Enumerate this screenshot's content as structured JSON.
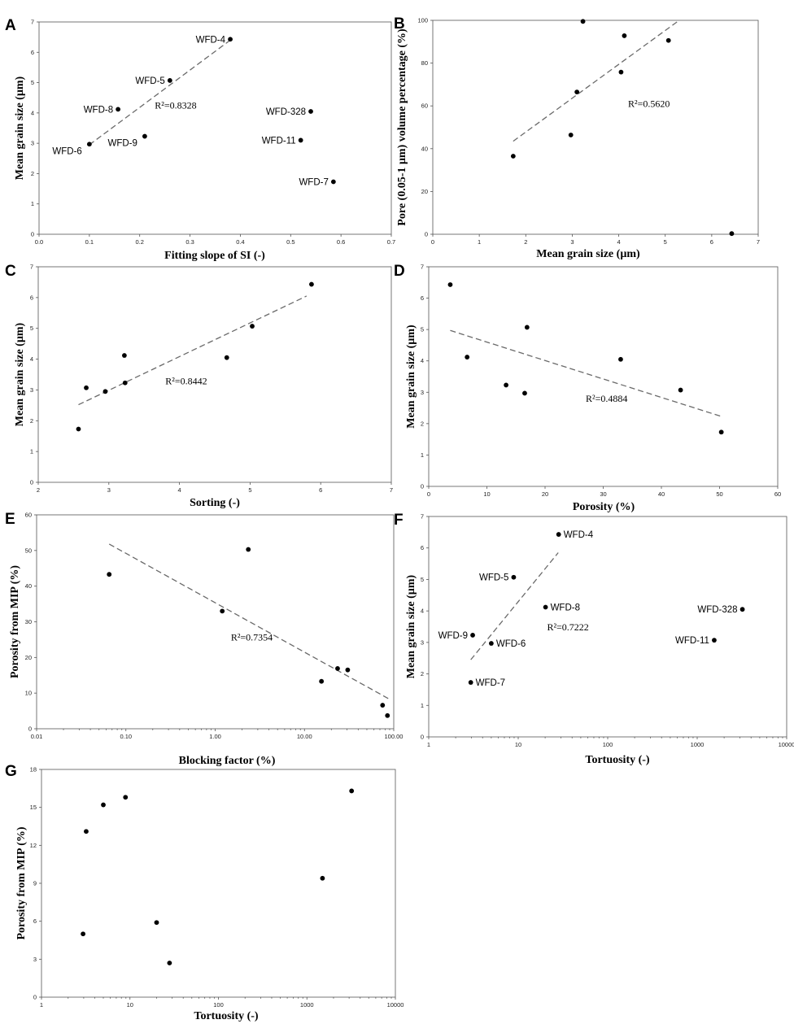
{
  "chart_data": [
    {
      "id": "A",
      "type": "scatter",
      "panel_label": "A",
      "xlabel": "Fitting slope of SI (-)",
      "ylabel": "Mean grain size (µm)",
      "xscale": "linear",
      "xlim": [
        0,
        0.7
      ],
      "ylim": [
        0,
        7
      ],
      "xticks": [
        0,
        0.1,
        0.2,
        0.3,
        0.4,
        0.5,
        0.6,
        0.7
      ],
      "xtick_labels": [
        "0.0",
        "0.1",
        "0.2",
        "0.3",
        "0.4",
        "0.5",
        "0.6",
        "0.7"
      ],
      "yticks": [
        0,
        1,
        2,
        3,
        4,
        5,
        6,
        7
      ],
      "ytick_labels": [
        "0",
        "1",
        "2",
        "3",
        "4",
        "5",
        "6",
        "7"
      ],
      "points": [
        {
          "x": 0.38,
          "y": 6.43,
          "label": "WFD-4",
          "anchor": "left"
        },
        {
          "x": 0.26,
          "y": 5.07,
          "label": "WFD-5",
          "anchor": "left"
        },
        {
          "x": 0.157,
          "y": 4.12,
          "label": "WFD-8",
          "anchor": "left"
        },
        {
          "x": 0.54,
          "y": 4.05,
          "label": "WFD-328",
          "anchor": "left"
        },
        {
          "x": 0.21,
          "y": 3.23,
          "label": "WFD-9",
          "anchor": "below-left"
        },
        {
          "x": 0.52,
          "y": 3.1,
          "label": "WFD-11",
          "anchor": "left"
        },
        {
          "x": 0.1,
          "y": 2.97,
          "label": "WFD-6",
          "anchor": "below-left"
        },
        {
          "x": 0.585,
          "y": 1.73,
          "label": "WFD-7",
          "anchor": "left"
        }
      ],
      "fit_line": [
        [
          0.1,
          2.95
        ],
        [
          0.38,
          6.4
        ]
      ],
      "r2": "R²=0.8328",
      "r2_at": [
        0.23,
        4.15
      ]
    },
    {
      "id": "B",
      "type": "scatter",
      "panel_label": "B",
      "xlabel": "Mean grain size (µm)",
      "ylabel": "Pore (0.05-1 µm) volume percentage (%)",
      "xscale": "linear",
      "xlim": [
        0,
        7
      ],
      "ylim": [
        0,
        100
      ],
      "xticks": [
        0,
        1,
        2,
        3,
        4,
        5,
        6,
        7
      ],
      "xtick_labels": [
        "0",
        "1",
        "2",
        "3",
        "4",
        "5",
        "6",
        "7"
      ],
      "yticks": [
        0,
        20,
        40,
        60,
        80,
        100
      ],
      "ytick_labels": [
        "0",
        "20",
        "40",
        "60",
        "80",
        "100"
      ],
      "points": [
        {
          "x": 1.73,
          "y": 36.5
        },
        {
          "x": 2.97,
          "y": 46.4
        },
        {
          "x": 3.1,
          "y": 66.5
        },
        {
          "x": 3.23,
          "y": 99.5
        },
        {
          "x": 4.05,
          "y": 75.8
        },
        {
          "x": 4.12,
          "y": 92.8
        },
        {
          "x": 5.07,
          "y": 90.6
        },
        {
          "x": 6.43,
          "y": 0.3
        }
      ],
      "fit_line": [
        [
          1.73,
          43.5
        ],
        [
          5.3,
          100
        ]
      ],
      "r2": "R²=0.5620",
      "r2_at": [
        4.2,
        59.5
      ]
    },
    {
      "id": "C",
      "type": "scatter",
      "panel_label": "C",
      "xlabel": "Sorting (-)",
      "ylabel": "Mean grain size (µm)",
      "xscale": "linear",
      "xlim": [
        2,
        7
      ],
      "ylim": [
        0,
        7
      ],
      "xticks": [
        2,
        3,
        4,
        5,
        6,
        7
      ],
      "xtick_labels": [
        "2",
        "3",
        "4",
        "5",
        "6",
        "7"
      ],
      "yticks": [
        0,
        1,
        2,
        3,
        4,
        5,
        6,
        7
      ],
      "ytick_labels": [
        "0",
        "1",
        "2",
        "3",
        "4",
        "5",
        "6",
        "7"
      ],
      "points": [
        {
          "x": 2.57,
          "y": 1.73
        },
        {
          "x": 2.68,
          "y": 3.07
        },
        {
          "x": 2.95,
          "y": 2.95
        },
        {
          "x": 3.23,
          "y": 3.23
        },
        {
          "x": 3.22,
          "y": 4.12
        },
        {
          "x": 4.67,
          "y": 4.05
        },
        {
          "x": 5.03,
          "y": 5.07
        },
        {
          "x": 5.87,
          "y": 6.43
        }
      ],
      "fit_line": [
        [
          2.57,
          2.52
        ],
        [
          5.8,
          6.05
        ]
      ],
      "r2": "R²=0.8442",
      "r2_at": [
        3.8,
        3.18
      ]
    },
    {
      "id": "D",
      "type": "scatter",
      "panel_label": "D",
      "xlabel": "Porosity (%)",
      "ylabel": "Mean grain size (µm)",
      "xscale": "linear",
      "xlim": [
        0,
        60
      ],
      "ylim": [
        0,
        7
      ],
      "xticks": [
        0,
        10,
        20,
        30,
        40,
        50,
        60
      ],
      "xtick_labels": [
        "0",
        "10",
        "20",
        "30",
        "40",
        "50",
        "60"
      ],
      "yticks": [
        0,
        1,
        2,
        3,
        4,
        5,
        6,
        7
      ],
      "ytick_labels": [
        "0",
        "1",
        "2",
        "3",
        "4",
        "5",
        "6",
        "7"
      ],
      "points": [
        {
          "x": 3.7,
          "y": 6.43
        },
        {
          "x": 6.6,
          "y": 4.12
        },
        {
          "x": 16.9,
          "y": 5.07
        },
        {
          "x": 13.3,
          "y": 3.23
        },
        {
          "x": 16.5,
          "y": 2.97
        },
        {
          "x": 33.0,
          "y": 4.05
        },
        {
          "x": 43.3,
          "y": 3.07
        },
        {
          "x": 50.3,
          "y": 1.73
        }
      ],
      "fit_line": [
        [
          3.7,
          4.97
        ],
        [
          50.3,
          2.23
        ]
      ],
      "r2": "R²=0.4884",
      "r2_at": [
        27,
        2.7
      ]
    },
    {
      "id": "E",
      "type": "scatter",
      "panel_label": "E",
      "xlabel": "Blocking factor (%)",
      "ylabel": "Porosity from MIP (%)",
      "xscale": "log",
      "xlim": [
        0.01,
        100
      ],
      "ylim": [
        0,
        60
      ],
      "xticks": [
        0.01,
        0.1,
        1,
        10,
        100
      ],
      "xtick_labels": [
        "0.01",
        "0.10",
        "1.00",
        "10.00",
        "100.00"
      ],
      "yticks": [
        0,
        10,
        20,
        30,
        40,
        50,
        60
      ],
      "ytick_labels": [
        "0",
        "10",
        "20",
        "30",
        "40",
        "50",
        "60"
      ],
      "points": [
        {
          "x": 0.065,
          "y": 43.3
        },
        {
          "x": 1.2,
          "y": 33.0
        },
        {
          "x": 2.35,
          "y": 50.3
        },
        {
          "x": 15.5,
          "y": 13.3
        },
        {
          "x": 23.5,
          "y": 16.9
        },
        {
          "x": 30.5,
          "y": 16.5
        },
        {
          "x": 75.0,
          "y": 6.6
        },
        {
          "x": 85.0,
          "y": 3.7
        }
      ],
      "fit_line": [
        [
          0.065,
          51.8
        ],
        [
          88.0,
          8.4
        ]
      ],
      "r2": "R²=0.7354",
      "r2_at": [
        1.5,
        24.8
      ]
    },
    {
      "id": "F",
      "type": "scatter",
      "panel_label": "F",
      "xlabel": "Tortuosity (-)",
      "ylabel": "Mean grain size (µm)",
      "xscale": "log",
      "xlim": [
        1,
        10000
      ],
      "ylim": [
        0,
        7
      ],
      "xticks": [
        1,
        10,
        100,
        1000,
        10000
      ],
      "xtick_labels": [
        "1",
        "10",
        "100",
        "1000",
        "10000"
      ],
      "yticks": [
        0,
        1,
        2,
        3,
        4,
        5,
        6,
        7
      ],
      "ytick_labels": [
        "0",
        "1",
        "2",
        "3",
        "4",
        "5",
        "6",
        "7"
      ],
      "points": [
        {
          "x": 28.3,
          "y": 6.43,
          "label": "WFD-4",
          "anchor": "right"
        },
        {
          "x": 8.9,
          "y": 5.07,
          "label": "WFD-5",
          "anchor": "left"
        },
        {
          "x": 20.2,
          "y": 4.12,
          "label": "WFD-8",
          "anchor": "right"
        },
        {
          "x": 3200,
          "y": 4.05,
          "label": "WFD-328",
          "anchor": "left"
        },
        {
          "x": 3.1,
          "y": 3.23,
          "label": "WFD-9",
          "anchor": "left"
        },
        {
          "x": 5.0,
          "y": 2.97,
          "label": "WFD-6",
          "anchor": "right"
        },
        {
          "x": 1550,
          "y": 3.07,
          "label": "WFD-11",
          "anchor": "left"
        },
        {
          "x": 2.95,
          "y": 1.73,
          "label": "WFD-7",
          "anchor": "right"
        }
      ],
      "fit_line": [
        [
          2.95,
          2.45
        ],
        [
          28.0,
          5.85
        ]
      ],
      "r2": "R²=0.7222",
      "r2_at": [
        21,
        3.38
      ]
    },
    {
      "id": "G",
      "type": "scatter",
      "panel_label": "G",
      "xlabel": "Tortuosity (-)",
      "ylabel": "Porosity from MIP (%)",
      "xscale": "log",
      "xlim": [
        1,
        10000
      ],
      "ylim": [
        0,
        18
      ],
      "xticks": [
        1,
        10,
        100,
        1000,
        10000
      ],
      "xtick_labels": [
        "1",
        "10",
        "100",
        "1000",
        "10000"
      ],
      "yticks": [
        0,
        3,
        6,
        9,
        12,
        15,
        18
      ],
      "ytick_labels": [
        "0",
        "3",
        "6",
        "9",
        "12",
        "15",
        "18"
      ],
      "points": [
        {
          "x": 3.2,
          "y": 13.1
        },
        {
          "x": 5.0,
          "y": 15.2
        },
        {
          "x": 8.9,
          "y": 15.8
        },
        {
          "x": 2.95,
          "y": 5.0
        },
        {
          "x": 20.0,
          "y": 5.9
        },
        {
          "x": 28.0,
          "y": 2.7
        },
        {
          "x": 1500,
          "y": 9.4
        },
        {
          "x": 3200,
          "y": 16.3
        }
      ],
      "fit_line": null,
      "r2": null,
      "r2_at": null
    }
  ]
}
